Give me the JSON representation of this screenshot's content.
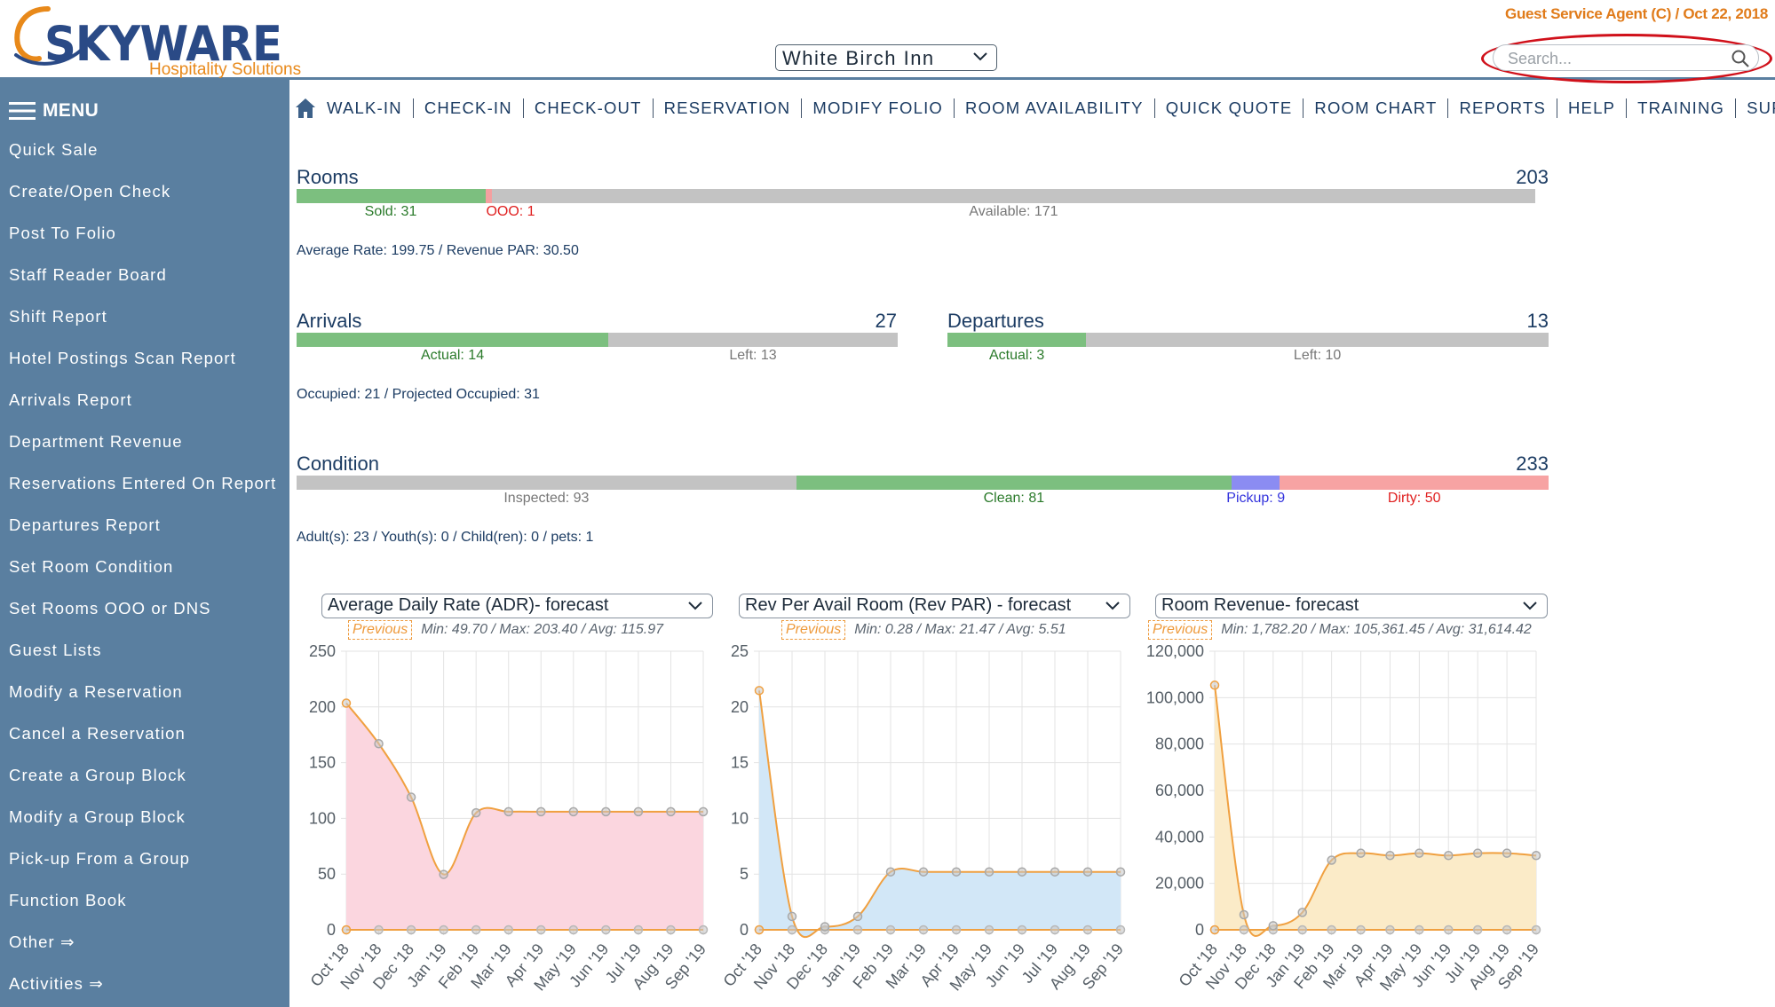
{
  "brand": {
    "name": "SKYWARE",
    "tagline": "Hospitality Solutions",
    "colors": {
      "primary": "#2a4a86",
      "accent": "#e8891a",
      "sidebar": "#5a7fa0"
    }
  },
  "header": {
    "agent_line": "Guest Service Agent (C) / Oct 22, 2018",
    "property": "White Birch Inn",
    "search_placeholder": "Search..."
  },
  "sidebar": {
    "menu_label": "MENU",
    "items": [
      "Quick Sale",
      "Create/Open Check",
      "Post To Folio",
      "Staff Reader Board",
      "Shift Report",
      "Hotel Postings Scan Report",
      "Arrivals Report",
      "Department Revenue",
      "Reservations Entered On Report",
      "Departures Report",
      "Set Room Condition",
      "Set Rooms OOO or DNS",
      "Guest Lists",
      "Modify a Reservation",
      "Cancel a Reservation",
      "Create a Group Block",
      "Modify a Group Block",
      "Pick-up From a Group",
      "Function Book",
      "Other ⇒",
      "Activities ⇒"
    ]
  },
  "topnav": {
    "items": [
      "WALK-IN",
      "CHECK-IN",
      "CHECK-OUT",
      "RESERVATION",
      "MODIFY FOLIO",
      "ROOM AVAILABILITY",
      "QUICK QUOTE",
      "ROOM CHART",
      "REPORTS",
      "HELP",
      "TRAINING",
      "SUPPORT"
    ]
  },
  "rooms": {
    "title": "Rooms",
    "total": "203",
    "segments": [
      {
        "label": "Sold: 31",
        "value": 31,
        "color": "#7cbf7f",
        "text_color": "#2a7a2a"
      },
      {
        "label": "OOO: 1",
        "value": 1,
        "color": "#f4a0a0",
        "text_color": "#e02020"
      },
      {
        "label": "Available: 171",
        "value": 171,
        "color": "#c3c3c3",
        "text_color": "#777777"
      }
    ],
    "info": "Average Rate:  199.75   /   Revenue PAR:  30.50"
  },
  "arrivals": {
    "title": "Arrivals",
    "total": "27",
    "segments": [
      {
        "label": "Actual: 14",
        "value": 14,
        "color": "#7cbf7f",
        "text_color": "#2a7a2a"
      },
      {
        "label": "Left: 13",
        "value": 13,
        "color": "#c3c3c3",
        "text_color": "#777777"
      }
    ]
  },
  "departures": {
    "title": "Departures",
    "total": "13",
    "segments": [
      {
        "label": "Actual: 3",
        "value": 3,
        "color": "#7cbf7f",
        "text_color": "#2a7a2a"
      },
      {
        "label": "Left: 10",
        "value": 10,
        "color": "#c3c3c3",
        "text_color": "#777777"
      }
    ]
  },
  "occupied_info": "Occupied:  21   /   Projected Occupied:  31",
  "condition": {
    "title": "Condition",
    "total": "233",
    "segments": [
      {
        "label": "Inspected: 93",
        "value": 93,
        "color": "#c3c3c3",
        "text_color": "#777777"
      },
      {
        "label": "Clean: 81",
        "value": 81,
        "color": "#7cbf7f",
        "text_color": "#2a7a2a"
      },
      {
        "label": "Pickup: 9",
        "value": 9,
        "color": "#8b8cf2",
        "text_color": "#3333dd"
      },
      {
        "label": "Dirty: 50",
        "value": 50,
        "color": "#f7a3a3",
        "text_color": "#e02020"
      }
    ]
  },
  "guests_info": "Adult(s):  23   /   Youth(s):  0   /   Child(ren):  0   /   pets:  1",
  "chart_data": [
    {
      "type": "area",
      "title": "Average Daily Rate (ADR)- forecast",
      "previous_label": "Previous",
      "stats": "Min: 49.70 / Max: 203.40 / Avg: 115.97",
      "x": [
        "Oct '18",
        "Nov '18",
        "Dec '18",
        "Jan '19",
        "Feb '19",
        "Mar '19",
        "Apr '19",
        "May '19",
        "Jun '19",
        "Jul '19",
        "Aug '19",
        "Sep '19"
      ],
      "series": [
        {
          "values": [
            203.4,
            167,
            119,
            49.7,
            105,
            106,
            106,
            106,
            106,
            106,
            106,
            106
          ],
          "fill": "#fbd6df",
          "line": "#f0a040"
        },
        {
          "values": [
            0,
            0,
            0,
            0,
            0,
            0,
            0,
            0,
            0,
            0,
            0,
            0
          ],
          "line": "#f0a040"
        }
      ],
      "ylim": [
        0,
        250
      ],
      "yticks": [
        "0",
        "50",
        "100",
        "150",
        "200",
        "250"
      ],
      "grid": true
    },
    {
      "type": "area",
      "title": "Rev Per Avail Room (Rev PAR) - forecast",
      "previous_label": "Previous",
      "stats": "Min: 0.28 / Max: 21.47 / Avg: 5.51",
      "x": [
        "Oct '18",
        "Nov '18",
        "Dec '18",
        "Jan '19",
        "Feb '19",
        "Mar '19",
        "Apr '19",
        "May '19",
        "Jun '19",
        "Jul '19",
        "Aug '19",
        "Sep '19"
      ],
      "series": [
        {
          "values": [
            21.47,
            1.2,
            0.28,
            1.2,
            5.2,
            5.2,
            5.2,
            5.2,
            5.2,
            5.2,
            5.2,
            5.2
          ],
          "fill": "#d2e7f7",
          "line": "#f0a040"
        },
        {
          "values": [
            0,
            0,
            0,
            0,
            0,
            0,
            0,
            0,
            0,
            0,
            0,
            0
          ],
          "line": "#f0a040"
        }
      ],
      "ylim": [
        0,
        25
      ],
      "yticks": [
        "0",
        "5",
        "10",
        "15",
        "20",
        "25"
      ],
      "grid": true
    },
    {
      "type": "area",
      "title": "Room Revenue- forecast",
      "previous_label": "Previous",
      "stats": "Min: 1,782.20 / Max: 105,361.45 / Avg: 31,614.42",
      "x": [
        "Oct '18",
        "Nov '18",
        "Dec '18",
        "Jan '19",
        "Feb '19",
        "Mar '19",
        "Apr '19",
        "May '19",
        "Jun '19",
        "Jul '19",
        "Aug '19",
        "Sep '19"
      ],
      "series": [
        {
          "values": [
            105361.45,
            6500,
            1782.2,
            7500,
            30000,
            33000,
            32000,
            33000,
            32000,
            33000,
            33000,
            32000
          ],
          "fill": "#fbebc8",
          "line": "#f0a040"
        },
        {
          "values": [
            0,
            0,
            0,
            0,
            0,
            0,
            0,
            0,
            0,
            0,
            0,
            0
          ],
          "line": "#f0a040"
        }
      ],
      "ylim": [
        0,
        120000
      ],
      "yticks": [
        "0",
        "20,000",
        "40,000",
        "60,000",
        "80,000",
        "100,000",
        "120,000"
      ],
      "grid": true
    }
  ]
}
